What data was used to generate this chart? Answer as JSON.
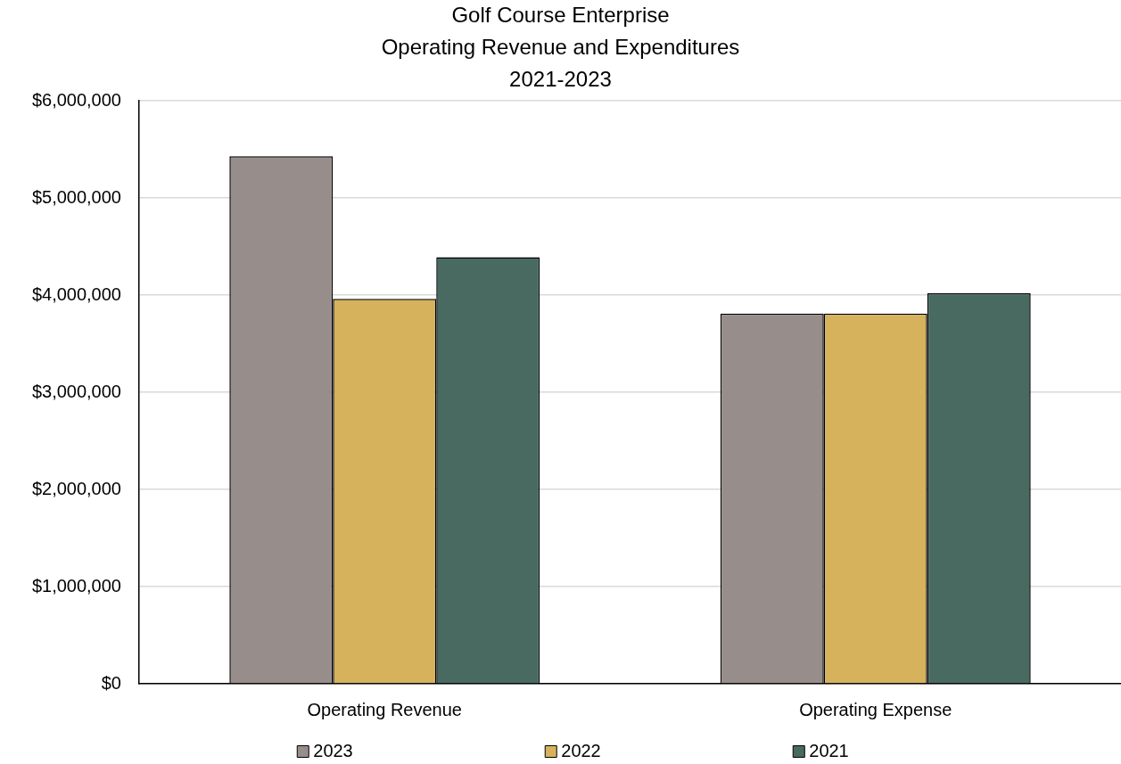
{
  "chart_data": {
    "type": "bar",
    "title": "Golf Course Enterprise\nOperating Revenue and Expenditures\n2021-2023",
    "categories": [
      "Operating Revenue",
      "Operating Expense"
    ],
    "series": [
      {
        "name": "2023",
        "color": "#978d8a",
        "values": [
          5430000,
          3810000
        ]
      },
      {
        "name": "2022",
        "color": "#d7b25d",
        "values": [
          3960000,
          3810000
        ]
      },
      {
        "name": "2021",
        "color": "#486a61",
        "values": [
          4390000,
          4020000
        ]
      }
    ],
    "ylim": [
      0,
      6000000
    ],
    "yticks": [
      {
        "value": 0,
        "label": "$0"
      },
      {
        "value": 1000000,
        "label": "$1,000,000"
      },
      {
        "value": 2000000,
        "label": "$2,000,000"
      },
      {
        "value": 3000000,
        "label": "$3,000,000"
      },
      {
        "value": 4000000,
        "label": "$4,000,000"
      },
      {
        "value": 5000000,
        "label": "$5,000,000"
      },
      {
        "value": 6000000,
        "label": "$6,000,000"
      }
    ],
    "grid": "y",
    "legend": "bottom"
  }
}
